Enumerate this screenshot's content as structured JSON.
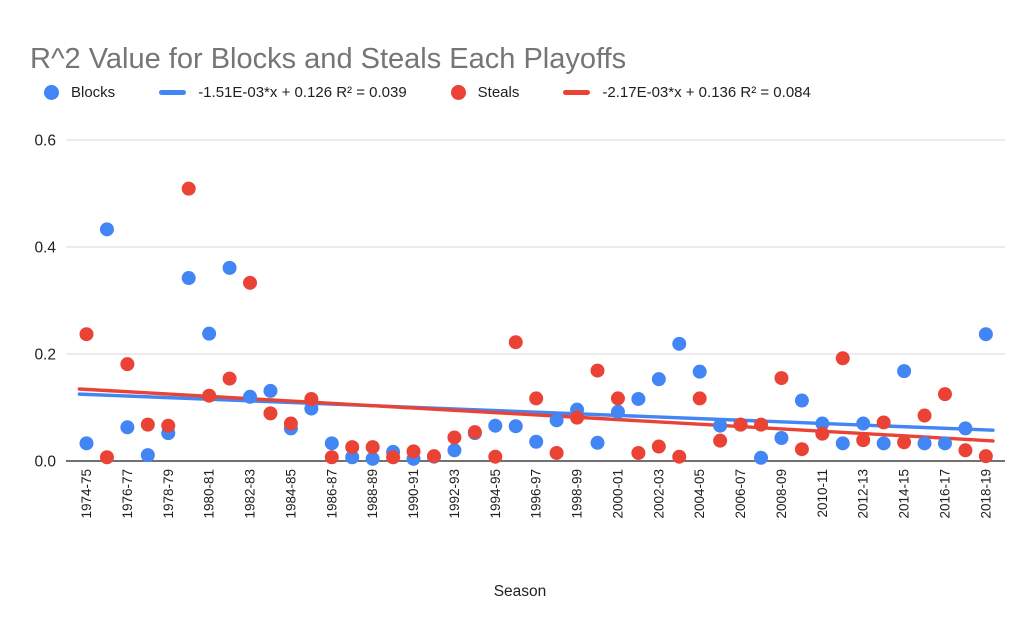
{
  "title": "R^2 Value for Blocks and Steals Each Playoffs",
  "legend": {
    "items": [
      {
        "marker": "circle",
        "color": "#4285F4",
        "label": "Blocks"
      },
      {
        "marker": "dash",
        "color": "#4285F4",
        "label": "-1.51E-03*x + 0.126 R² = 0.039"
      },
      {
        "marker": "circle",
        "color": "#EA4335",
        "label": "Steals"
      },
      {
        "marker": "dash",
        "color": "#EA4335",
        "label": "-2.17E-03*x + 0.136 R² = 0.084"
      }
    ]
  },
  "colors": {
    "blocks": "#4285F4",
    "steals": "#EA4335",
    "title_text": "#757575",
    "axis_text": "#212121",
    "gridline": "#e0e0e0",
    "axis_line": "#424242"
  },
  "chart_data": {
    "type": "scatter",
    "title": "R^2 Value for Blocks and Steals Each Playoffs",
    "xlabel": "Season",
    "ylabel": "",
    "ylim": [
      0,
      0.6
    ],
    "y_ticks": [
      0.0,
      0.2,
      0.4,
      0.6
    ],
    "y_tick_labels": [
      "0.0",
      "0.2",
      "0.4",
      "0.6"
    ],
    "grid": "horizontal-only",
    "legend_position": "top",
    "categories": [
      "1974-75",
      "1975-76",
      "1976-77",
      "1977-78",
      "1978-79",
      "1979-80",
      "1980-81",
      "1981-82",
      "1982-83",
      "1983-84",
      "1984-85",
      "1985-86",
      "1986-87",
      "1987-88",
      "1988-89",
      "1989-90",
      "1990-91",
      "1991-92",
      "1992-93",
      "1993-94",
      "1994-95",
      "1995-96",
      "1996-97",
      "1997-98",
      "1998-99",
      "1999-00",
      "2000-01",
      "2001-02",
      "2002-03",
      "2003-04",
      "2004-05",
      "2005-06",
      "2006-07",
      "2007-08",
      "2008-09",
      "2009-10",
      "2010-11",
      "2011-12",
      "2012-13",
      "2013-14",
      "2014-15",
      "2015-16",
      "2016-17",
      "2017-18",
      "2018-19"
    ],
    "x_tick_labels_shown": [
      "1974-75",
      "1976-77",
      "1978-79",
      "1980-81",
      "1982-83",
      "1984-85",
      "1986-87",
      "1988-89",
      "1990-91",
      "1992-93",
      "1994-95",
      "1996-97",
      "1998-99",
      "2000-01",
      "2002-03",
      "2004-05",
      "2006-07",
      "2008-09",
      "2010-11",
      "2012-13",
      "2014-15",
      "2016-17",
      "2018-19"
    ],
    "series": [
      {
        "name": "Blocks",
        "color": "#4285F4",
        "values": [
          0.033,
          0.433,
          0.063,
          0.011,
          0.052,
          0.342,
          0.238,
          0.361,
          0.12,
          0.131,
          0.061,
          0.098,
          0.033,
          0.007,
          0.004,
          0.017,
          0.004,
          0.008,
          0.02,
          0.052,
          0.066,
          0.065,
          0.036,
          0.076,
          0.096,
          0.034,
          0.092,
          0.116,
          0.153,
          0.219,
          0.167,
          0.066,
          0.068,
          0.006,
          0.043,
          0.113,
          0.07,
          0.033,
          0.07,
          0.033,
          0.168,
          0.033,
          0.033,
          0.061,
          0.237
        ]
      },
      {
        "name": "Steals",
        "color": "#EA4335",
        "values": [
          0.237,
          0.007,
          0.181,
          0.068,
          0.066,
          0.509,
          0.122,
          0.154,
          0.333,
          0.089,
          0.07,
          0.116,
          0.007,
          0.026,
          0.026,
          0.007,
          0.018,
          0.009,
          0.044,
          0.054,
          0.008,
          0.222,
          0.117,
          0.015,
          0.081,
          0.169,
          0.117,
          0.015,
          0.027,
          0.008,
          0.117,
          0.038,
          0.068,
          0.068,
          0.155,
          0.022,
          0.051,
          0.192,
          0.039,
          0.072,
          0.035,
          0.085,
          0.125,
          0.02,
          0.009
        ]
      }
    ],
    "trendlines": [
      {
        "series": "Blocks",
        "color": "#4285F4",
        "equation": "-1.51E-03*x + 0.126",
        "slope": -0.00151,
        "intercept": 0.126,
        "r2": 0.039
      },
      {
        "series": "Steals",
        "color": "#EA4335",
        "equation": "-2.17E-03*x + 0.136",
        "slope": -0.00217,
        "intercept": 0.136,
        "r2": 0.084
      }
    ]
  }
}
